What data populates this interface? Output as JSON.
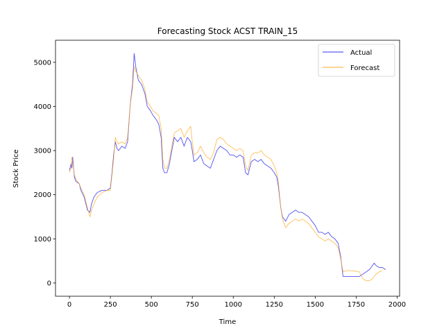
{
  "chart_data": {
    "type": "line",
    "title": "Forecasting Stock ACST TRAIN_15",
    "xlabel": "Time",
    "ylabel": "Stock Price",
    "xlim": [
      -85,
      2015
    ],
    "ylim": [
      -300,
      5500
    ],
    "xticks": [
      0,
      250,
      500,
      750,
      1000,
      1250,
      1500,
      1750,
      2000
    ],
    "yticks": [
      0,
      1000,
      2000,
      3000,
      4000,
      5000
    ],
    "grid": false,
    "legend": "top-right",
    "series": [
      {
        "name": "Actual",
        "color": "#3333ee",
        "points": [
          [
            0,
            2550
          ],
          [
            10,
            2700
          ],
          [
            15,
            2600
          ],
          [
            20,
            2850
          ],
          [
            30,
            2400
          ],
          [
            40,
            2300
          ],
          [
            60,
            2250
          ],
          [
            70,
            2100
          ],
          [
            90,
            1950
          ],
          [
            100,
            1800
          ],
          [
            110,
            1650
          ],
          [
            125,
            1600
          ],
          [
            135,
            1800
          ],
          [
            150,
            1950
          ],
          [
            170,
            2050
          ],
          [
            200,
            2100
          ],
          [
            230,
            2100
          ],
          [
            250,
            2150
          ],
          [
            260,
            2500
          ],
          [
            270,
            2900
          ],
          [
            280,
            3200
          ],
          [
            290,
            3050
          ],
          [
            300,
            3000
          ],
          [
            320,
            3100
          ],
          [
            340,
            3050
          ],
          [
            355,
            3200
          ],
          [
            370,
            4000
          ],
          [
            385,
            4500
          ],
          [
            395,
            5200
          ],
          [
            405,
            4900
          ],
          [
            420,
            4600
          ],
          [
            440,
            4500
          ],
          [
            460,
            4300
          ],
          [
            475,
            4000
          ],
          [
            495,
            3900
          ],
          [
            510,
            3800
          ],
          [
            530,
            3700
          ],
          [
            545,
            3600
          ],
          [
            560,
            3300
          ],
          [
            570,
            2600
          ],
          [
            580,
            2500
          ],
          [
            595,
            2500
          ],
          [
            610,
            2700
          ],
          [
            625,
            3000
          ],
          [
            640,
            3300
          ],
          [
            660,
            3200
          ],
          [
            680,
            3300
          ],
          [
            700,
            3100
          ],
          [
            720,
            3300
          ],
          [
            740,
            3200
          ],
          [
            750,
            3000
          ],
          [
            760,
            2750
          ],
          [
            780,
            2800
          ],
          [
            800,
            2900
          ],
          [
            820,
            2700
          ],
          [
            840,
            2650
          ],
          [
            860,
            2600
          ],
          [
            880,
            2800
          ],
          [
            900,
            3000
          ],
          [
            920,
            3100
          ],
          [
            940,
            3050
          ],
          [
            960,
            3000
          ],
          [
            980,
            2900
          ],
          [
            1000,
            2900
          ],
          [
            1020,
            2850
          ],
          [
            1040,
            2900
          ],
          [
            1060,
            2850
          ],
          [
            1075,
            2500
          ],
          [
            1090,
            2450
          ],
          [
            1110,
            2750
          ],
          [
            1130,
            2800
          ],
          [
            1150,
            2750
          ],
          [
            1170,
            2800
          ],
          [
            1190,
            2700
          ],
          [
            1210,
            2650
          ],
          [
            1230,
            2600
          ],
          [
            1250,
            2500
          ],
          [
            1265,
            2400
          ],
          [
            1275,
            2200
          ],
          [
            1290,
            1700
          ],
          [
            1300,
            1500
          ],
          [
            1320,
            1400
          ],
          [
            1340,
            1550
          ],
          [
            1360,
            1600
          ],
          [
            1380,
            1650
          ],
          [
            1400,
            1600
          ],
          [
            1420,
            1600
          ],
          [
            1440,
            1550
          ],
          [
            1460,
            1500
          ],
          [
            1480,
            1400
          ],
          [
            1500,
            1300
          ],
          [
            1520,
            1150
          ],
          [
            1540,
            1150
          ],
          [
            1560,
            1100
          ],
          [
            1580,
            1150
          ],
          [
            1600,
            1050
          ],
          [
            1620,
            1000
          ],
          [
            1640,
            900
          ],
          [
            1655,
            600
          ],
          [
            1670,
            150
          ],
          [
            1690,
            150
          ],
          [
            1710,
            150
          ],
          [
            1740,
            150
          ],
          [
            1770,
            150
          ],
          [
            1790,
            200
          ],
          [
            1810,
            250
          ],
          [
            1830,
            300
          ],
          [
            1850,
            400
          ],
          [
            1860,
            450
          ],
          [
            1870,
            400
          ],
          [
            1890,
            350
          ],
          [
            1910,
            350
          ],
          [
            1930,
            300
          ]
        ]
      },
      {
        "name": "Forecast",
        "color": "#ffaa22",
        "points": [
          [
            0,
            2500
          ],
          [
            10,
            2650
          ],
          [
            15,
            2850
          ],
          [
            20,
            2750
          ],
          [
            30,
            2450
          ],
          [
            40,
            2350
          ],
          [
            60,
            2250
          ],
          [
            70,
            2150
          ],
          [
            90,
            2000
          ],
          [
            100,
            1850
          ],
          [
            110,
            1700
          ],
          [
            125,
            1500
          ],
          [
            135,
            1650
          ],
          [
            150,
            1800
          ],
          [
            170,
            1950
          ],
          [
            200,
            2050
          ],
          [
            230,
            2100
          ],
          [
            250,
            2100
          ],
          [
            260,
            2450
          ],
          [
            270,
            2800
          ],
          [
            280,
            3300
          ],
          [
            290,
            3200
          ],
          [
            300,
            3150
          ],
          [
            320,
            3200
          ],
          [
            340,
            3150
          ],
          [
            355,
            3300
          ],
          [
            370,
            4000
          ],
          [
            385,
            4400
          ],
          [
            395,
            4900
          ],
          [
            405,
            4800
          ],
          [
            420,
            4700
          ],
          [
            440,
            4600
          ],
          [
            460,
            4400
          ],
          [
            475,
            4100
          ],
          [
            495,
            4000
          ],
          [
            510,
            3900
          ],
          [
            530,
            3850
          ],
          [
            545,
            3800
          ],
          [
            560,
            3500
          ],
          [
            570,
            2800
          ],
          [
            580,
            2600
          ],
          [
            595,
            2600
          ],
          [
            610,
            2800
          ],
          [
            625,
            3100
          ],
          [
            640,
            3400
          ],
          [
            660,
            3450
          ],
          [
            680,
            3500
          ],
          [
            700,
            3300
          ],
          [
            720,
            3450
          ],
          [
            740,
            3550
          ],
          [
            750,
            3200
          ],
          [
            760,
            2900
          ],
          [
            780,
            2950
          ],
          [
            800,
            3100
          ],
          [
            820,
            2950
          ],
          [
            840,
            2850
          ],
          [
            860,
            2800
          ],
          [
            880,
            2950
          ],
          [
            900,
            3250
          ],
          [
            920,
            3300
          ],
          [
            940,
            3250
          ],
          [
            960,
            3150
          ],
          [
            980,
            3100
          ],
          [
            1000,
            3050
          ],
          [
            1020,
            3000
          ],
          [
            1040,
            3050
          ],
          [
            1060,
            3000
          ],
          [
            1075,
            2650
          ],
          [
            1090,
            2550
          ],
          [
            1110,
            2900
          ],
          [
            1130,
            2950
          ],
          [
            1150,
            2950
          ],
          [
            1170,
            3000
          ],
          [
            1190,
            2900
          ],
          [
            1210,
            2850
          ],
          [
            1230,
            2800
          ],
          [
            1250,
            2650
          ],
          [
            1265,
            2500
          ],
          [
            1275,
            2300
          ],
          [
            1290,
            1700
          ],
          [
            1300,
            1450
          ],
          [
            1320,
            1250
          ],
          [
            1340,
            1350
          ],
          [
            1360,
            1400
          ],
          [
            1380,
            1450
          ],
          [
            1400,
            1400
          ],
          [
            1420,
            1450
          ],
          [
            1440,
            1400
          ],
          [
            1460,
            1350
          ],
          [
            1480,
            1250
          ],
          [
            1500,
            1150
          ],
          [
            1520,
            1050
          ],
          [
            1540,
            1000
          ],
          [
            1560,
            950
          ],
          [
            1580,
            1000
          ],
          [
            1600,
            950
          ],
          [
            1620,
            900
          ],
          [
            1640,
            800
          ],
          [
            1655,
            550
          ],
          [
            1670,
            250
          ],
          [
            1690,
            280
          ],
          [
            1710,
            280
          ],
          [
            1740,
            270
          ],
          [
            1770,
            250
          ],
          [
            1790,
            100
          ],
          [
            1810,
            50
          ],
          [
            1830,
            50
          ],
          [
            1850,
            100
          ],
          [
            1860,
            150
          ],
          [
            1870,
            200
          ],
          [
            1890,
            250
          ],
          [
            1910,
            280
          ]
        ]
      }
    ]
  }
}
